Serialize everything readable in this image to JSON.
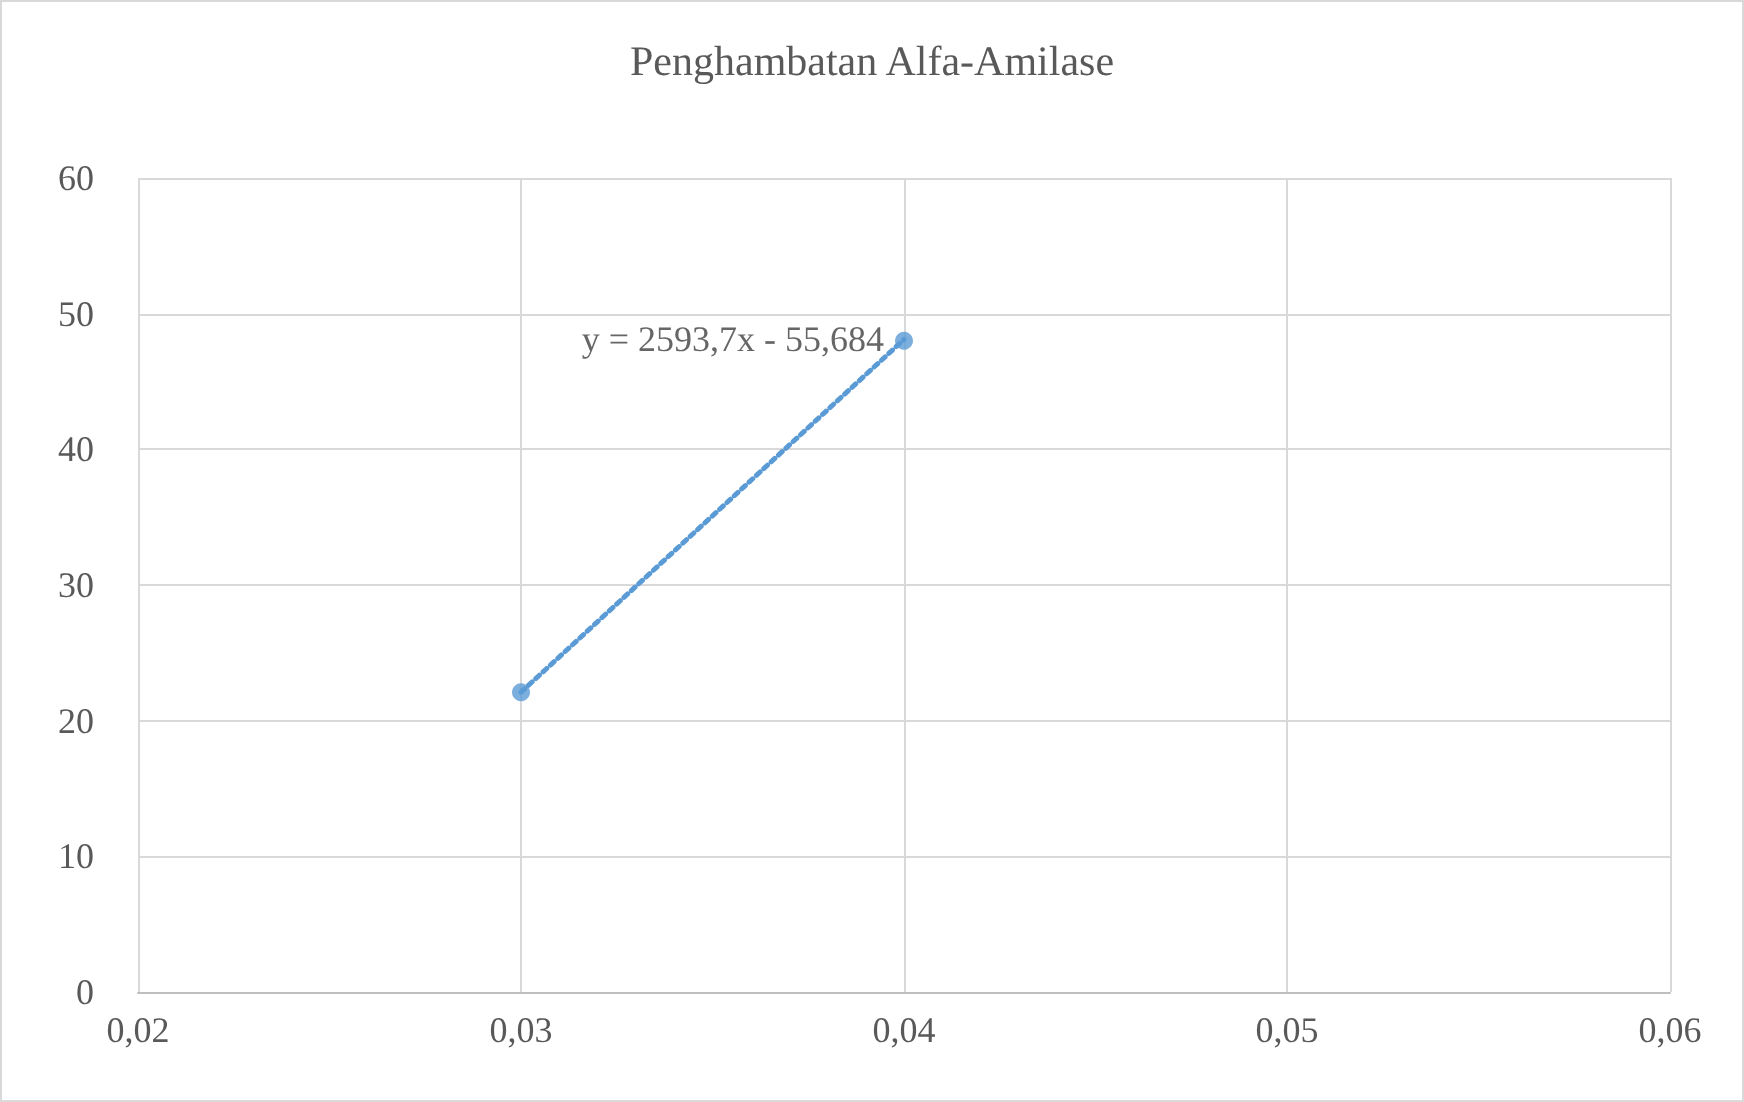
{
  "chart_data": {
    "type": "scatter",
    "title": "Penghambatan Alfa-Amilase",
    "x": [
      0.03,
      0.04
    ],
    "series": [
      {
        "color": "#5b9bd5",
        "values": [
          22.1,
          48.0
        ],
        "marker": "circle"
      },
      {
        "type": "line",
        "color": "#5b9bd5",
        "values": [
          22.1,
          48.1
        ],
        "marker": "none",
        "line_style": "dotted"
      }
    ],
    "annotations": [
      {
        "text": "y = 2593,7x - 55,684",
        "x": 0.04,
        "y": 48.1
      }
    ],
    "xlim": [
      0.02,
      0.06
    ],
    "xticks": [
      {
        "value": 0.02,
        "label": "0,02"
      },
      {
        "value": 0.03,
        "label": "0,03"
      },
      {
        "value": 0.04,
        "label": "0,04"
      },
      {
        "value": 0.05,
        "label": "0,05"
      },
      {
        "value": 0.06,
        "label": "0,06"
      }
    ],
    "ylim": [
      0,
      60
    ],
    "yticks": [
      0,
      10,
      20,
      30,
      40,
      50,
      60
    ],
    "grid": true
  }
}
